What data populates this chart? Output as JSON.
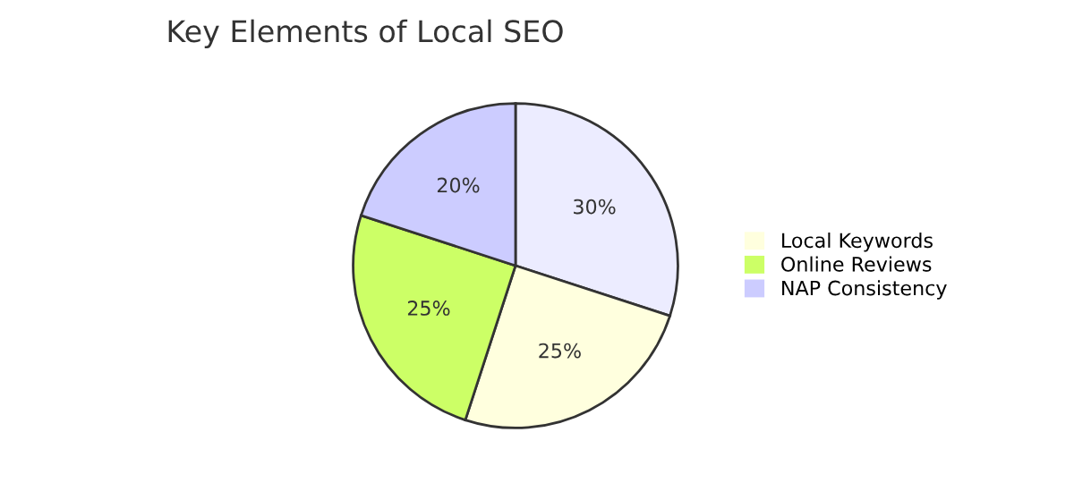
{
  "chart_data": {
    "type": "pie",
    "title": "Key Elements of Local SEO",
    "categories": [
      null,
      "Local Keywords",
      "Online Reviews",
      "NAP Consistency"
    ],
    "values": [
      30,
      25,
      25,
      20
    ],
    "colors": [
      "#ececff",
      "#ffffde",
      "#ccff66",
      "#ccccff"
    ],
    "value_labels": [
      "30%",
      "25%",
      "25%",
      "20%"
    ],
    "legend": "right"
  }
}
